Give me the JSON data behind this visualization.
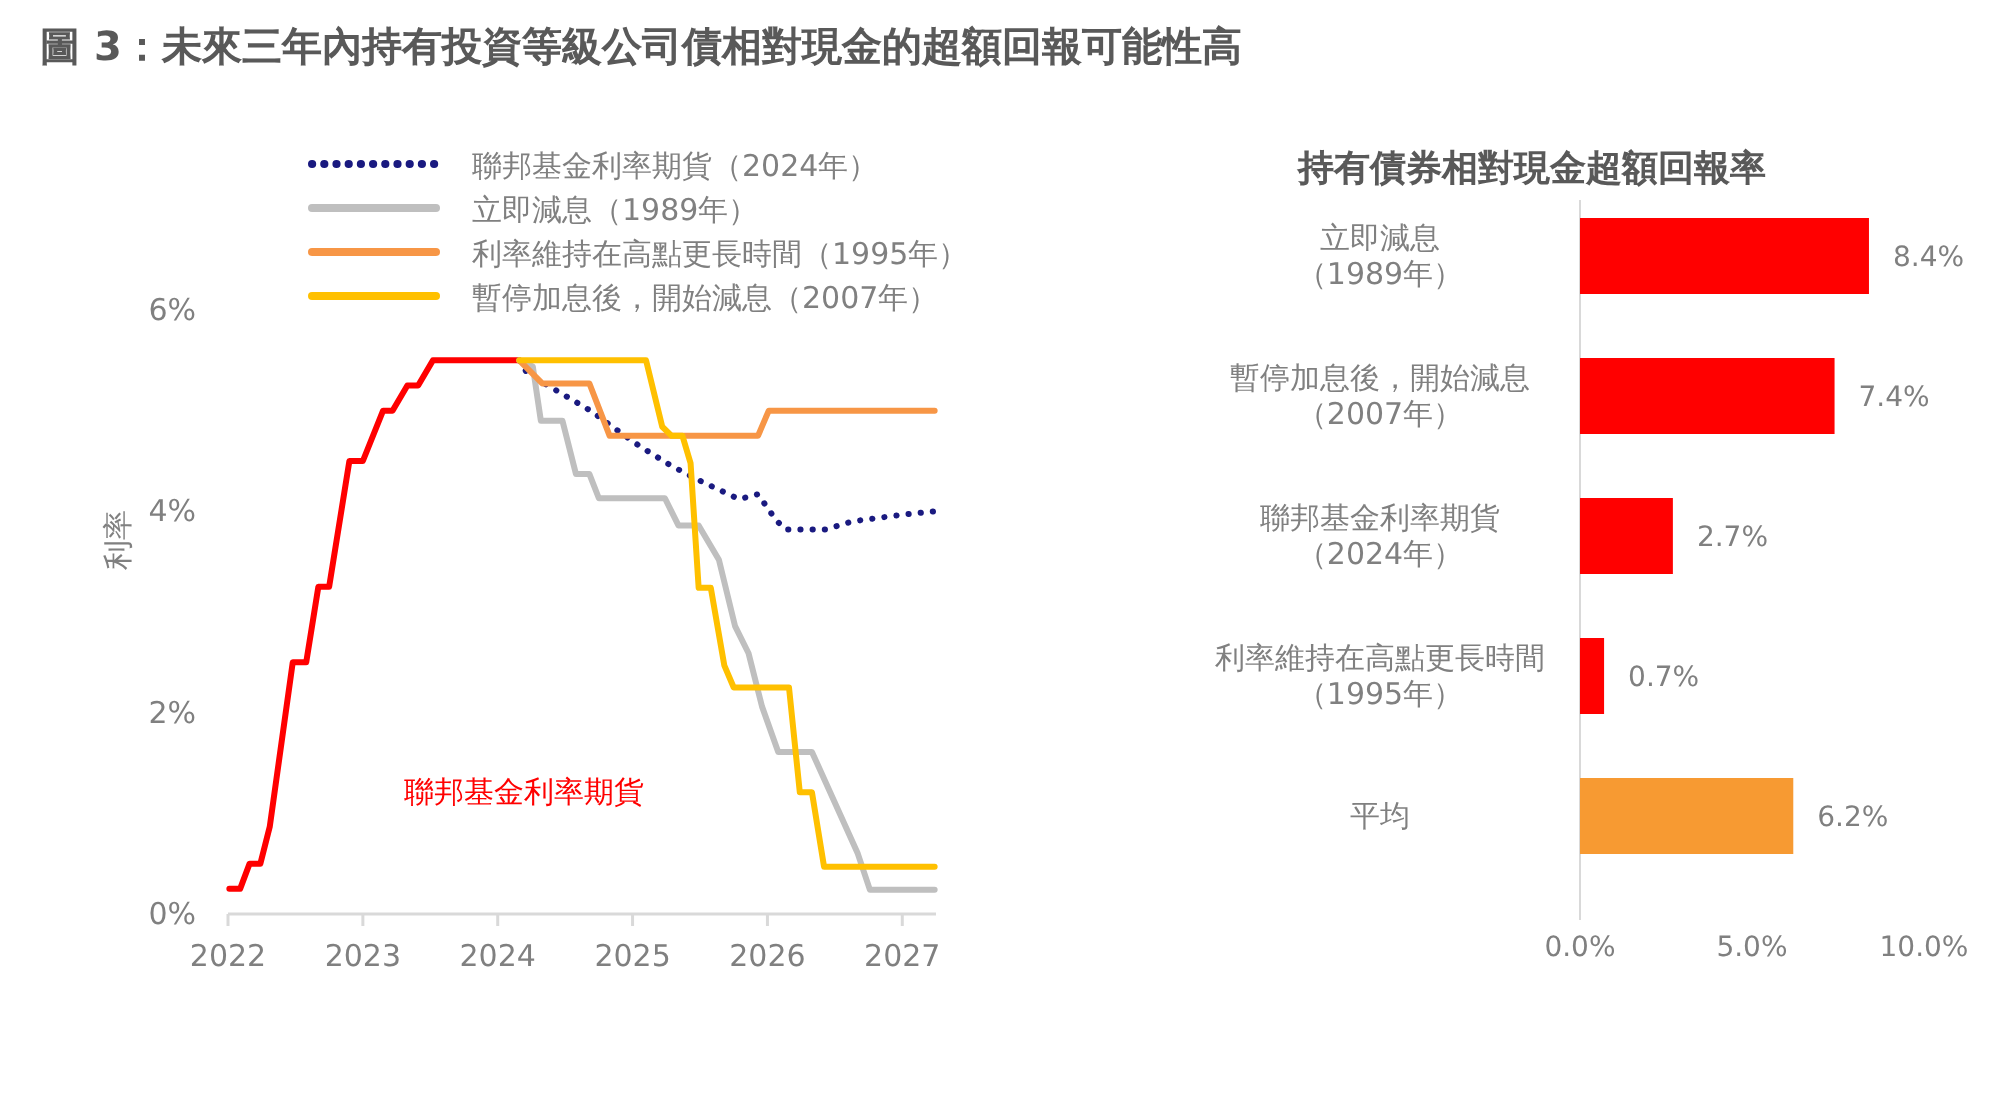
{
  "chart_data": [
    {
      "type": "line",
      "title": "圖 3：未來三年內持有投資等級公司債相對現金的超額回報可能性高",
      "ylabel": "利率",
      "xlim": [
        2022,
        2027.25
      ],
      "xticks": [
        2022,
        2023,
        2024,
        2025,
        2026,
        2027
      ],
      "ylim": [
        0,
        6
      ],
      "yticks": [
        {
          "value": 0,
          "label": "0%"
        },
        {
          "value": 2,
          "label": "2%"
        },
        {
          "value": 4,
          "label": "4%"
        },
        {
          "value": 6,
          "label": "6%"
        }
      ],
      "legend": "top",
      "grid": false,
      "series": [
        {
          "name": "聯邦基金利率期貨",
          "color": "#ff0000",
          "line_style": "solid",
          "x": [
            2022.01,
            2022.09,
            2022.16,
            2022.24,
            2022.31,
            2022.48,
            2022.58,
            2022.67,
            2022.75,
            2022.9,
            2023.0,
            2023.15,
            2023.22,
            2023.33,
            2023.41,
            2023.52,
            2024.16
          ],
          "values": [
            0.25,
            0.25,
            0.5,
            0.5,
            0.87,
            2.5,
            2.5,
            3.25,
            3.25,
            4.5,
            4.5,
            5.0,
            5.0,
            5.25,
            5.25,
            5.5,
            5.5
          ]
        },
        {
          "name": "聯邦基金利率期貨（2024年）",
          "color": "#1a1a80",
          "line_style": "dotted",
          "x": [
            2024.16,
            2024.22,
            2024.55,
            2024.7,
            2024.85,
            2025.05,
            2025.29,
            2025.49,
            2025.79,
            2025.93,
            2026.06,
            2026.13,
            2026.43,
            2026.63,
            2027.02,
            2027.24
          ],
          "values": [
            5.5,
            5.37,
            5.11,
            4.99,
            4.84,
            4.65,
            4.45,
            4.31,
            4.12,
            4.17,
            3.92,
            3.82,
            3.82,
            3.9,
            3.97,
            4.0
          ]
        },
        {
          "name": "立即減息（1989年）",
          "color": "#bfbfbf",
          "line_style": "solid",
          "x": [
            2024.16,
            2024.26,
            2024.32,
            2024.48,
            2024.58,
            2024.68,
            2024.75,
            2025.24,
            2025.34,
            2025.49,
            2025.64,
            2025.76,
            2025.86,
            2025.96,
            2026.08,
            2026.33,
            2026.67,
            2026.76,
            2027.24
          ],
          "values": [
            5.5,
            5.44,
            4.9,
            4.9,
            4.37,
            4.37,
            4.13,
            4.13,
            3.86,
            3.86,
            3.52,
            2.86,
            2.59,
            2.06,
            1.61,
            1.61,
            0.6,
            0.24,
            0.24
          ]
        },
        {
          "name": "利率維持在高點更長時間（1995年）",
          "color": "#f79646",
          "line_style": "solid",
          "x": [
            2024.16,
            2024.33,
            2024.68,
            2024.83,
            2025.93,
            2026.01,
            2027.24
          ],
          "values": [
            5.5,
            5.27,
            5.27,
            4.75,
            4.75,
            5.0,
            5.0
          ]
        },
        {
          "name": "暫停加息後，開始減息（2007年）",
          "color": "#ffc000",
          "line_style": "solid",
          "x": [
            2024.16,
            2025.1,
            2025.22,
            2025.29,
            2025.37,
            2025.43,
            2025.49,
            2025.58,
            2025.68,
            2025.75,
            2026.16,
            2026.24,
            2026.33,
            2026.42,
            2027.24
          ],
          "values": [
            5.5,
            5.5,
            4.84,
            4.75,
            4.75,
            4.48,
            3.24,
            3.24,
            2.47,
            2.25,
            2.25,
            1.21,
            1.21,
            0.47,
            0.47
          ]
        }
      ]
    },
    {
      "type": "bar",
      "orientation": "horizontal",
      "title": "持有債券相對現金超額回報率",
      "categories": [
        "立即減息（1989年）",
        "暫停加息後，開始減息（2007年）",
        "聯邦基金利率期貨（2024年）",
        "利率維持在高點更長時間（1995年）",
        "平均"
      ],
      "values": [
        8.4,
        7.4,
        2.7,
        0.7,
        6.2
      ],
      "colors": [
        "#ff0000",
        "#ff0000",
        "#ff0000",
        "#ff0000",
        "#f79a32"
      ],
      "value_labels": [
        "8.4%",
        "7.4%",
        "2.7%",
        "0.7%",
        "6.2%"
      ],
      "xlim": [
        0,
        10
      ],
      "xticks": [
        {
          "value": 0,
          "label": "0.0%"
        },
        {
          "value": 5,
          "label": "5.0%"
        },
        {
          "value": 10,
          "label": "10.0%"
        }
      ]
    }
  ]
}
